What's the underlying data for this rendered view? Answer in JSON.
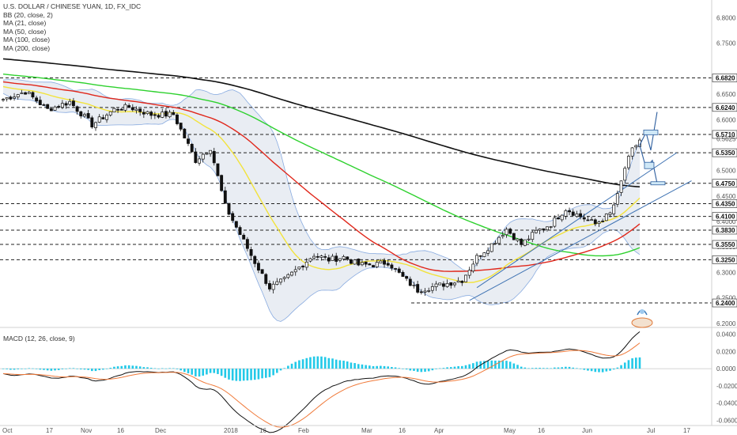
{
  "colors": {
    "ma21": "#f2e33c",
    "ma50": "#e0271b",
    "ma100": "#2ed12e",
    "ma200": "#111111",
    "bb": "#5b8bd6",
    "macd": "#111111",
    "signal": "#f07a3a",
    "hist": "#22c9e8",
    "channel": "#3f73b3",
    "up": "#ffffff",
    "down": "#111111"
  },
  "chart_data": {
    "type": "candlestick",
    "title": "U.S. DOLLAR / CHINESE YUAN, 1D, FX_IDC",
    "legend": [
      "BB (20, close, 2)",
      "MA (21, close)",
      "MA (50, close)",
      "MA (100, close)",
      "MA (200, close)"
    ],
    "ylim": [
      6.195,
      6.835
    ],
    "y_ticks": [
      "6.8000",
      "6.7500",
      "6.6500",
      "6.6000",
      "6.5000",
      "6.4500",
      "6.4000",
      "6.3500",
      "6.3000",
      "6.2500",
      "6.2000"
    ],
    "current_price": "6.5625",
    "levels": [
      "6.6820",
      "6.6240",
      "6.5710",
      "6.5350",
      "6.4750",
      "6.4350",
      "6.4100",
      "6.3830",
      "6.3550",
      "6.3250",
      "6.2400"
    ],
    "x_ticks": [
      "Oct",
      "17",
      "Nov",
      "16",
      "Dec",
      "2018",
      "16",
      "Feb",
      "Mar",
      "16",
      "Apr",
      "May",
      "16",
      "Jun",
      "Jul",
      "17"
    ],
    "anchors": [
      [
        0,
        6.64
      ],
      [
        6,
        6.655
      ],
      [
        12,
        6.62
      ],
      [
        18,
        6.635
      ],
      [
        24,
        6.59
      ],
      [
        30,
        6.62
      ],
      [
        34,
        6.625
      ],
      [
        40,
        6.61
      ],
      [
        46,
        6.61
      ],
      [
        52,
        6.52
      ],
      [
        56,
        6.545
      ],
      [
        60,
        6.43
      ],
      [
        64,
        6.375
      ],
      [
        68,
        6.32
      ],
      [
        72,
        6.27
      ],
      [
        76,
        6.285
      ],
      [
        80,
        6.31
      ],
      [
        84,
        6.335
      ],
      [
        88,
        6.325
      ],
      [
        92,
        6.33
      ],
      [
        96,
        6.315
      ],
      [
        100,
        6.315
      ],
      [
        104,
        6.32
      ],
      [
        108,
        6.29
      ],
      [
        112,
        6.265
      ],
      [
        118,
        6.275
      ],
      [
        124,
        6.285
      ],
      [
        128,
        6.33
      ],
      [
        132,
        6.355
      ],
      [
        136,
        6.385
      ],
      [
        140,
        6.355
      ],
      [
        144,
        6.38
      ],
      [
        148,
        6.395
      ],
      [
        152,
        6.425
      ],
      [
        156,
        6.41
      ],
      [
        160,
        6.395
      ],
      [
        164,
        6.415
      ],
      [
        166,
        6.45
      ],
      [
        168,
        6.505
      ],
      [
        170,
        6.54
      ],
      [
        172,
        6.56
      ]
    ],
    "macd_panel": {
      "legend": "MACD (12, 26, close, 9)",
      "y_ticks": [
        "0.0400",
        "0.0200",
        "0.0000",
        "-0.0200",
        "-0.0400",
        "-0.0600"
      ],
      "ylim": [
        -0.066,
        0.046
      ]
    }
  }
}
